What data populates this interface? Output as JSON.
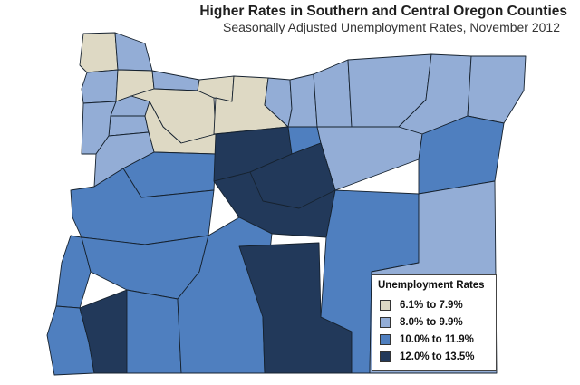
{
  "title": "Higher Rates in Southern and Central Oregon Counties",
  "subtitle": "Seasonally Adjusted Unemployment Rates, November 2012",
  "legend": {
    "title": "Unemployment Rates",
    "items": [
      {
        "label": "6.1% to 7.9%",
        "color": "#ded9c4"
      },
      {
        "label": "8.0% to 9.9%",
        "color": "#93add6"
      },
      {
        "label": "10.0% to 11.9%",
        "color": "#4f7fbf"
      },
      {
        "label": "12.0% to 13.5%",
        "color": "#22395a"
      }
    ]
  },
  "counties": [
    {
      "class": 0
    },
    {
      "class": 0
    },
    {
      "class": 0
    },
    {
      "class": 0
    },
    {
      "class": 0
    },
    {
      "class": 0
    },
    {
      "class": 1
    },
    {
      "class": 1
    },
    {
      "class": 1
    },
    {
      "class": 1
    },
    {
      "class": 1
    },
    {
      "class": 1
    },
    {
      "class": 1
    },
    {
      "class": 1
    },
    {
      "class": 1
    },
    {
      "class": 1
    },
    {
      "class": 1
    },
    {
      "class": 1
    },
    {
      "class": 1
    },
    {
      "class": 1
    },
    {
      "class": 2
    },
    {
      "class": 2
    },
    {
      "class": 2
    },
    {
      "class": 2
    },
    {
      "class": 2
    },
    {
      "class": 2
    },
    {
      "class": 2
    },
    {
      "class": 3
    },
    {
      "class": 3
    },
    {
      "class": 3
    },
    {
      "class": 3
    }
  ]
}
